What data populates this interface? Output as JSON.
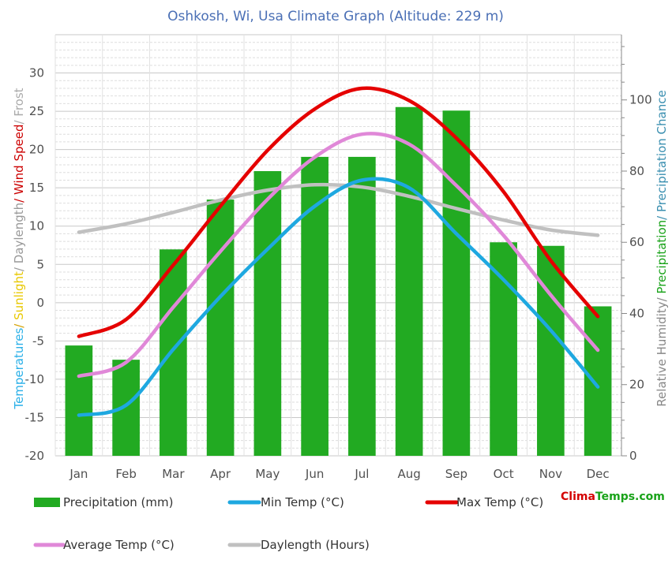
{
  "chart_data": {
    "type": "bar",
    "title": "Oshkosh, Wi, Usa Climate Graph (Altitude: 229 m)",
    "categories": [
      "Jan",
      "Feb",
      "Mar",
      "Apr",
      "May",
      "Jun",
      "Jul",
      "Aug",
      "Sep",
      "Oct",
      "Nov",
      "Dec"
    ],
    "left_axis": {
      "label_parts": [
        {
          "text": "Temperatures",
          "color": "#2ab0e8"
        },
        {
          "text": "/ ",
          "color": "#d4a000"
        },
        {
          "text": "Sunlight",
          "color": "#e8c800"
        },
        {
          "text": "/ Daylength",
          "color": "#999999"
        },
        {
          "text": "/ ",
          "color": "#cc0000"
        },
        {
          "text": "Wind Speed",
          "color": "#cc0000"
        },
        {
          "text": "/ Frost",
          "color": "#aaaaaa"
        }
      ],
      "ylim": [
        -20,
        35
      ],
      "ticks": [
        -20,
        -15,
        -10,
        -5,
        0,
        5,
        10,
        15,
        20,
        25,
        30
      ]
    },
    "right_axis": {
      "label_parts": [
        {
          "text": "Relative Humidity/ ",
          "color": "#888888"
        },
        {
          "text": "Precipitation",
          "color": "#1aa31a"
        },
        {
          "text": "/ Precipitation Chance",
          "color": "#3a8fb0"
        }
      ],
      "ylim": [
        0,
        118.33
      ],
      "ticks": [
        0,
        20,
        40,
        60,
        80,
        100
      ]
    },
    "precipitation": {
      "name": "Precipitation (mm)",
      "color": "#22aa22",
      "values": [
        31,
        27,
        58,
        72,
        80,
        84,
        84,
        98,
        97,
        60,
        59,
        42
      ]
    },
    "min_temp": {
      "name": "Min Temp (°C)",
      "color": "#1ea8e0",
      "values": [
        -14.7,
        -13.4,
        -6.1,
        0.8,
        7.0,
        12.6,
        16.0,
        15.0,
        9.0,
        3.0,
        -3.6,
        -11.0
      ]
    },
    "max_temp": {
      "name": "Max Temp (°C)",
      "color": "#e50000",
      "values": [
        -4.4,
        -2.2,
        4.9,
        12.6,
        19.9,
        25.3,
        28.0,
        26.4,
        21.5,
        14.5,
        5.5,
        -1.8
      ]
    },
    "avg_temp": {
      "name": "Average Temp (°C)",
      "color": "#e088d8",
      "values": [
        -9.6,
        -7.8,
        -0.6,
        6.7,
        13.5,
        19.0,
        22.0,
        20.7,
        15.3,
        8.8,
        1.0,
        -6.2
      ]
    },
    "daylength": {
      "name": "Daylength (Hours)",
      "color": "#c0c0c0",
      "values": [
        9.2,
        10.3,
        11.8,
        13.4,
        14.7,
        15.4,
        15.1,
        13.9,
        12.3,
        10.8,
        9.5,
        8.8
      ]
    },
    "legend_placement": "bottom",
    "grid": true
  },
  "brand": {
    "part1": "Clima",
    "part2": "Temps.com"
  }
}
